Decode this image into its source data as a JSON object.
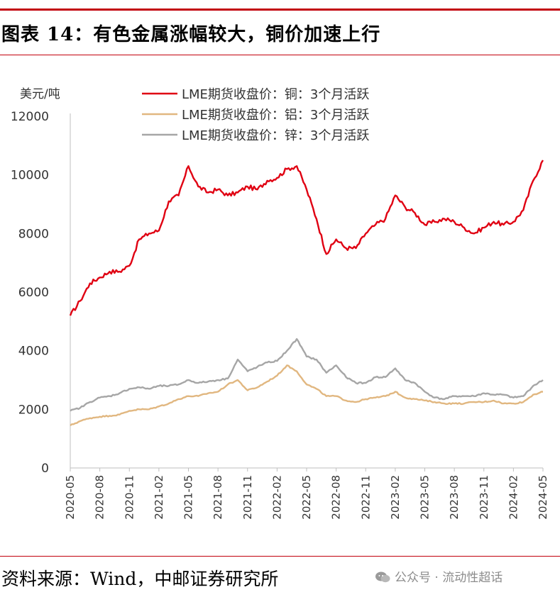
{
  "header": {
    "title": "图表 14：有色金属涨幅较大，铜价加速上行"
  },
  "footer": {
    "source": "资料来源：Wind，中邮证券研究所",
    "watermark": "公众号 · 流动性超话"
  },
  "colors": {
    "accent_rule": "#c2000b",
    "copper": "#e00012",
    "aluminum": "#e1b780",
    "zinc": "#a6a6a6"
  },
  "chart_data": {
    "type": "line",
    "title": "",
    "ylabel": "美元/吨",
    "ylim": [
      0,
      12000
    ],
    "yticks": [
      0,
      2000,
      4000,
      6000,
      8000,
      10000,
      12000
    ],
    "ytick_labels": [
      "0",
      "2000",
      "4000",
      "6000",
      "8000",
      "10000",
      "12000"
    ],
    "xtick_labels": [
      "2020-05",
      "2020-08",
      "2020-11",
      "2021-02",
      "2021-05",
      "2021-08",
      "2021-11",
      "2022-02",
      "2022-05",
      "2022-08",
      "2022-11",
      "2023-02",
      "2023-05",
      "2023-08",
      "2023-11",
      "2024-02",
      "2024-05"
    ],
    "legend_position": "top",
    "grid": false,
    "series": [
      {
        "name": "LME期货收盘价：铜：3个月活跃",
        "color": "#e00012",
        "x": [
          "2020-05",
          "2020-06",
          "2020-07",
          "2020-08",
          "2020-09",
          "2020-10",
          "2020-11",
          "2020-12",
          "2021-01",
          "2021-02",
          "2021-03",
          "2021-04",
          "2021-05",
          "2021-06",
          "2021-07",
          "2021-08",
          "2021-09",
          "2021-10",
          "2021-11",
          "2021-12",
          "2022-01",
          "2022-02",
          "2022-03",
          "2022-04",
          "2022-05",
          "2022-06",
          "2022-07",
          "2022-08",
          "2022-09",
          "2022-10",
          "2022-11",
          "2022-12",
          "2023-01",
          "2023-02",
          "2023-03",
          "2023-04",
          "2023-05",
          "2023-06",
          "2023-07",
          "2023-08",
          "2023-09",
          "2023-10",
          "2023-11",
          "2023-12",
          "2024-01",
          "2024-02",
          "2024-03",
          "2024-04",
          "2024-05"
        ],
        "y": [
          5200,
          5700,
          6300,
          6500,
          6700,
          6700,
          6900,
          7800,
          8000,
          8100,
          9100,
          9300,
          10300,
          9600,
          9400,
          9500,
          9300,
          9400,
          9600,
          9500,
          9800,
          9900,
          10200,
          10300,
          9500,
          8500,
          7300,
          7800,
          7500,
          7500,
          8000,
          8300,
          8500,
          9300,
          8900,
          8700,
          8300,
          8400,
          8500,
          8400,
          8200,
          8000,
          8200,
          8400,
          8300,
          8400,
          8800,
          9800,
          10500
        ]
      },
      {
        "name": "LME期货收盘价：铝：3个月活跃",
        "color": "#e1b780",
        "x": [
          "2020-05",
          "2020-06",
          "2020-07",
          "2020-08",
          "2020-09",
          "2020-10",
          "2020-11",
          "2020-12",
          "2021-01",
          "2021-02",
          "2021-03",
          "2021-04",
          "2021-05",
          "2021-06",
          "2021-07",
          "2021-08",
          "2021-09",
          "2021-10",
          "2021-11",
          "2021-12",
          "2022-01",
          "2022-02",
          "2022-03",
          "2022-04",
          "2022-05",
          "2022-06",
          "2022-07",
          "2022-08",
          "2022-09",
          "2022-10",
          "2022-11",
          "2022-12",
          "2023-01",
          "2023-02",
          "2023-03",
          "2023-04",
          "2023-05",
          "2023-06",
          "2023-07",
          "2023-08",
          "2023-09",
          "2023-10",
          "2023-11",
          "2023-12",
          "2024-01",
          "2024-02",
          "2024-03",
          "2024-04",
          "2024-05"
        ],
        "y": [
          1450,
          1600,
          1700,
          1750,
          1780,
          1820,
          1950,
          2000,
          2000,
          2100,
          2200,
          2350,
          2450,
          2450,
          2550,
          2600,
          2850,
          3000,
          2650,
          2750,
          2950,
          3150,
          3500,
          3300,
          2850,
          2700,
          2450,
          2450,
          2300,
          2250,
          2350,
          2400,
          2450,
          2600,
          2400,
          2350,
          2300,
          2250,
          2200,
          2200,
          2200,
          2250,
          2250,
          2300,
          2200,
          2200,
          2250,
          2500,
          2600
        ]
      },
      {
        "name": "LME期货收盘价：锌：3个月活跃",
        "color": "#a6a6a6",
        "x": [
          "2020-05",
          "2020-06",
          "2020-07",
          "2020-08",
          "2020-09",
          "2020-10",
          "2020-11",
          "2020-12",
          "2021-01",
          "2021-02",
          "2021-03",
          "2021-04",
          "2021-05",
          "2021-06",
          "2021-07",
          "2021-08",
          "2021-09",
          "2021-10",
          "2021-11",
          "2021-12",
          "2022-01",
          "2022-02",
          "2022-03",
          "2022-04",
          "2022-05",
          "2022-06",
          "2022-07",
          "2022-08",
          "2022-09",
          "2022-10",
          "2022-11",
          "2022-12",
          "2023-01",
          "2023-02",
          "2023-03",
          "2023-04",
          "2023-05",
          "2023-06",
          "2023-07",
          "2023-08",
          "2023-09",
          "2023-10",
          "2023-11",
          "2023-12",
          "2024-01",
          "2024-02",
          "2024-03",
          "2024-04",
          "2024-05"
        ],
        "y": [
          1950,
          2050,
          2250,
          2400,
          2450,
          2550,
          2700,
          2750,
          2700,
          2800,
          2800,
          2850,
          3000,
          2900,
          2950,
          3000,
          3050,
          3700,
          3300,
          3450,
          3600,
          3650,
          4000,
          4400,
          3800,
          3700,
          3250,
          3500,
          3100,
          2900,
          2900,
          3100,
          3100,
          3400,
          3000,
          2900,
          2600,
          2400,
          2350,
          2450,
          2450,
          2450,
          2550,
          2500,
          2500,
          2400,
          2450,
          2800,
          3000
        ]
      }
    ]
  }
}
